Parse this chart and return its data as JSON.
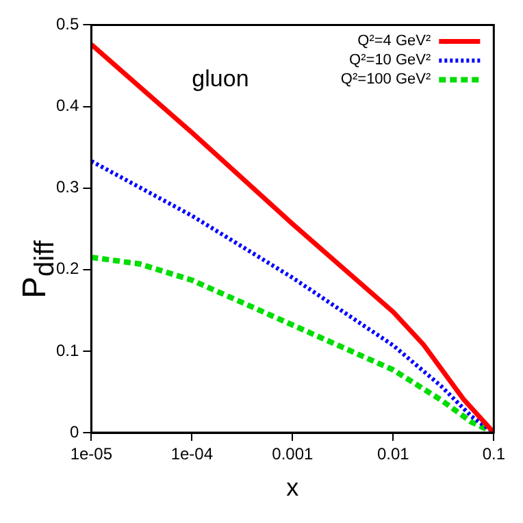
{
  "chart_data": {
    "type": "line",
    "xlabel": "x",
    "ylabel": "P$_{diff}$",
    "annotations": [
      "gluon"
    ],
    "xlim": [
      1e-05,
      0.1
    ],
    "ylim": [
      0,
      0.5
    ],
    "xticks": [
      {
        "value": 1e-05,
        "label": "1e-05"
      },
      {
        "value": 0.0001,
        "label": "1e-04"
      },
      0.001,
      0.01,
      0.1
    ],
    "yticks": [
      0,
      0.1,
      0.2,
      0.3,
      0.4,
      0.5
    ],
    "log": "x",
    "grid": false,
    "legend": "top right",
    "marker": "none",
    "series": [
      {
        "name": "Q²=4 GeV²",
        "color": "#ff0000",
        "line_style": "solid",
        "x": [
          1e-05,
          0.0001,
          0.001,
          0.01,
          0.02,
          0.05,
          0.1
        ],
        "values": [
          0.476,
          0.368,
          0.256,
          0.148,
          0.108,
          0.041,
          0
        ]
      },
      {
        "name": "Q²=10 GeV²",
        "color": "#0000ff",
        "line_style": "dotted",
        "x": [
          1e-05,
          0.0001,
          0.001,
          0.01,
          0.03,
          0.06,
          0.1
        ],
        "values": [
          0.333,
          0.266,
          0.19,
          0.107,
          0.057,
          0.02,
          0
        ]
      },
      {
        "name": "Q²=100 GeV²",
        "color": "#00dd00",
        "line_style": "dashed",
        "x": [
          1e-05,
          3e-05,
          0.0001,
          0.001,
          0.01,
          0.03,
          0.06,
          0.1
        ],
        "values": [
          0.215,
          0.207,
          0.187,
          0.132,
          0.077,
          0.04,
          0.013,
          0
        ]
      }
    ]
  }
}
